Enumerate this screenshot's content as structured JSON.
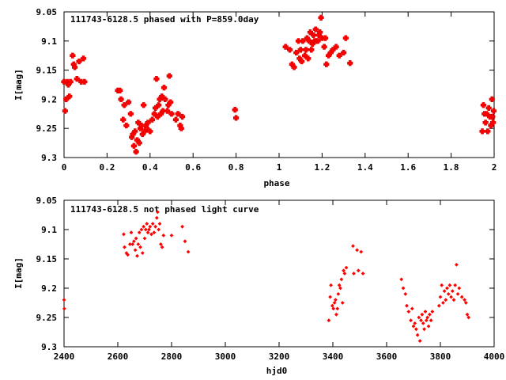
{
  "chart_data": [
    {
      "type": "scatter",
      "title": "111743-6128.5 phased with P=859.0day",
      "xlabel": "phase",
      "ylabel": "I[mag]",
      "xlim": [
        0,
        2
      ],
      "ylim": [
        9.05,
        9.3
      ],
      "y_inverted": true,
      "grid": false,
      "x_ticks": [
        "0",
        "0.2",
        "0.4",
        "0.6",
        "0.8",
        "1",
        "1.2",
        "1.4",
        "1.6",
        "1.8",
        "2"
      ],
      "y_ticks": [
        "9.05",
        "9.1",
        "9.15",
        "9.2",
        "9.25",
        "9.3"
      ],
      "marker_color": "#ff0000",
      "points": [
        [
          0.0,
          9.17
        ],
        [
          0.005,
          9.22
        ],
        [
          0.01,
          9.2
        ],
        [
          0.015,
          9.17
        ],
        [
          0.02,
          9.175
        ],
        [
          0.025,
          9.195
        ],
        [
          0.03,
          9.17
        ],
        [
          0.04,
          9.125
        ],
        [
          0.045,
          9.14
        ],
        [
          0.05,
          9.145
        ],
        [
          0.06,
          9.165
        ],
        [
          0.07,
          9.135
        ],
        [
          0.08,
          9.17
        ],
        [
          0.09,
          9.13
        ],
        [
          0.095,
          9.17
        ],
        [
          0.25,
          9.185
        ],
        [
          0.26,
          9.185
        ],
        [
          0.265,
          9.2
        ],
        [
          0.275,
          9.235
        ],
        [
          0.28,
          9.21
        ],
        [
          0.29,
          9.245
        ],
        [
          0.3,
          9.205
        ],
        [
          0.31,
          9.225
        ],
        [
          0.315,
          9.265
        ],
        [
          0.32,
          9.26
        ],
        [
          0.325,
          9.28
        ],
        [
          0.33,
          9.255
        ],
        [
          0.335,
          9.29
        ],
        [
          0.34,
          9.27
        ],
        [
          0.345,
          9.24
        ],
        [
          0.35,
          9.275
        ],
        [
          0.355,
          9.25
        ],
        [
          0.36,
          9.245
        ],
        [
          0.365,
          9.26
        ],
        [
          0.37,
          9.21
        ],
        [
          0.375,
          9.255
        ],
        [
          0.38,
          9.245
        ],
        [
          0.385,
          9.25
        ],
        [
          0.39,
          9.24
        ],
        [
          0.4,
          9.255
        ],
        [
          0.41,
          9.235
        ],
        [
          0.42,
          9.225
        ],
        [
          0.425,
          9.215
        ],
        [
          0.43,
          9.165
        ],
        [
          0.435,
          9.23
        ],
        [
          0.44,
          9.21
        ],
        [
          0.445,
          9.2
        ],
        [
          0.45,
          9.225
        ],
        [
          0.455,
          9.195
        ],
        [
          0.46,
          9.22
        ],
        [
          0.465,
          9.18
        ],
        [
          0.47,
          9.2
        ],
        [
          0.48,
          9.22
        ],
        [
          0.485,
          9.21
        ],
        [
          0.49,
          9.16
        ],
        [
          0.495,
          9.205
        ],
        [
          0.5,
          9.225
        ],
        [
          0.52,
          9.235
        ],
        [
          0.53,
          9.225
        ],
        [
          0.54,
          9.245
        ],
        [
          0.545,
          9.25
        ],
        [
          0.55,
          9.23
        ],
        [
          0.795,
          9.218
        ],
        [
          0.8,
          9.232
        ],
        [
          1.03,
          9.11
        ],
        [
          1.05,
          9.115
        ],
        [
          1.06,
          9.14
        ],
        [
          1.07,
          9.145
        ],
        [
          1.08,
          9.12
        ],
        [
          1.09,
          9.1
        ],
        [
          1.095,
          9.13
        ],
        [
          1.1,
          9.115
        ],
        [
          1.105,
          9.135
        ],
        [
          1.11,
          9.1
        ],
        [
          1.12,
          9.125
        ],
        [
          1.125,
          9.115
        ],
        [
          1.13,
          9.095
        ],
        [
          1.135,
          9.13
        ],
        [
          1.14,
          9.1
        ],
        [
          1.145,
          9.085
        ],
        [
          1.15,
          9.115
        ],
        [
          1.155,
          9.105
        ],
        [
          1.16,
          9.09
        ],
        [
          1.165,
          9.1
        ],
        [
          1.17,
          9.08
        ],
        [
          1.175,
          9.1
        ],
        [
          1.18,
          9.1
        ],
        [
          1.185,
          9.09
        ],
        [
          1.19,
          9.085
        ],
        [
          1.195,
          9.06
        ],
        [
          1.2,
          9.095
        ],
        [
          1.21,
          9.11
        ],
        [
          1.215,
          9.095
        ],
        [
          1.22,
          9.14
        ],
        [
          1.23,
          9.125
        ],
        [
          1.24,
          9.12
        ],
        [
          1.25,
          9.115
        ],
        [
          1.265,
          9.11
        ],
        [
          1.28,
          9.125
        ],
        [
          1.3,
          9.12
        ],
        [
          1.31,
          9.095
        ],
        [
          1.33,
          9.138
        ],
        [
          1.945,
          9.255
        ],
        [
          1.95,
          9.21
        ],
        [
          1.955,
          9.225
        ],
        [
          1.96,
          9.24
        ],
        [
          1.965,
          9.225
        ],
        [
          1.97,
          9.255
        ],
        [
          1.975,
          9.215
        ],
        [
          1.98,
          9.23
        ],
        [
          1.985,
          9.245
        ],
        [
          1.99,
          9.2
        ],
        [
          1.992,
          9.23
        ],
        [
          1.995,
          9.24
        ],
        [
          1.998,
          9.22
        ]
      ]
    },
    {
      "type": "scatter",
      "title": "111743-6128.5 not phased light curve",
      "xlabel": "hjd0",
      "ylabel": "I[mag]",
      "xlim": [
        2400,
        4000
      ],
      "ylim": [
        9.05,
        9.3
      ],
      "y_inverted": true,
      "grid": false,
      "x_ticks": [
        "2400",
        "2600",
        "2800",
        "3000",
        "3200",
        "3400",
        "3600",
        "3800",
        "4000"
      ],
      "y_ticks": [
        "9.05",
        "9.1",
        "9.15",
        "9.2",
        "9.25",
        "9.3"
      ],
      "marker_color": "#ff0000",
      "points": [
        [
          2400,
          9.22
        ],
        [
          2401,
          9.235
        ],
        [
          2622,
          9.108
        ],
        [
          2625,
          9.13
        ],
        [
          2632,
          9.14
        ],
        [
          2637,
          9.143
        ],
        [
          2645,
          9.125
        ],
        [
          2650,
          9.105
        ],
        [
          2655,
          9.125
        ],
        [
          2660,
          9.12
        ],
        [
          2665,
          9.135
        ],
        [
          2668,
          9.115
        ],
        [
          2672,
          9.145
        ],
        [
          2676,
          9.125
        ],
        [
          2680,
          9.105
        ],
        [
          2684,
          9.13
        ],
        [
          2688,
          9.1
        ],
        [
          2692,
          9.14
        ],
        [
          2696,
          9.095
        ],
        [
          2700,
          9.115
        ],
        [
          2704,
          9.1
        ],
        [
          2708,
          9.09
        ],
        [
          2712,
          9.105
        ],
        [
          2716,
          9.1
        ],
        [
          2720,
          9.095
        ],
        [
          2725,
          9.108
        ],
        [
          2730,
          9.09
        ],
        [
          2735,
          9.105
        ],
        [
          2740,
          9.095
        ],
        [
          2745,
          9.08
        ],
        [
          2748,
          9.07
        ],
        [
          2752,
          9.1
        ],
        [
          2756,
          9.09
        ],
        [
          2760,
          9.125
        ],
        [
          2765,
          9.13
        ],
        [
          2770,
          9.11
        ],
        [
          2800,
          9.11
        ],
        [
          2840,
          9.095
        ],
        [
          2850,
          9.12
        ],
        [
          2862,
          9.138
        ],
        [
          3385,
          9.255
        ],
        [
          3390,
          9.215
        ],
        [
          3393,
          9.195
        ],
        [
          3398,
          9.23
        ],
        [
          3402,
          9.235
        ],
        [
          3406,
          9.225
        ],
        [
          3410,
          9.22
        ],
        [
          3413,
          9.245
        ],
        [
          3417,
          9.235
        ],
        [
          3420,
          9.21
        ],
        [
          3424,
          9.195
        ],
        [
          3428,
          9.2
        ],
        [
          3432,
          9.185
        ],
        [
          3436,
          9.225
        ],
        [
          3440,
          9.17
        ],
        [
          3444,
          9.175
        ],
        [
          3450,
          9.165
        ],
        [
          3475,
          9.128
        ],
        [
          3490,
          9.135
        ],
        [
          3478,
          9.175
        ],
        [
          3495,
          9.17
        ],
        [
          3505,
          9.138
        ],
        [
          3512,
          9.175
        ],
        [
          3655,
          9.185
        ],
        [
          3662,
          9.2
        ],
        [
          3670,
          9.21
        ],
        [
          3675,
          9.23
        ],
        [
          3682,
          9.24
        ],
        [
          3690,
          9.255
        ],
        [
          3695,
          9.235
        ],
        [
          3700,
          9.265
        ],
        [
          3705,
          9.26
        ],
        [
          3710,
          9.27
        ],
        [
          3715,
          9.28
        ],
        [
          3720,
          9.25
        ],
        [
          3724,
          9.29
        ],
        [
          3728,
          9.255
        ],
        [
          3732,
          9.245
        ],
        [
          3736,
          9.26
        ],
        [
          3740,
          9.27
        ],
        [
          3744,
          9.24
        ],
        [
          3748,
          9.255
        ],
        [
          3752,
          9.25
        ],
        [
          3756,
          9.265
        ],
        [
          3760,
          9.245
        ],
        [
          3765,
          9.255
        ],
        [
          3770,
          9.24
        ],
        [
          3795,
          9.23
        ],
        [
          3800,
          9.215
        ],
        [
          3805,
          9.195
        ],
        [
          3810,
          9.225
        ],
        [
          3815,
          9.205
        ],
        [
          3820,
          9.22
        ],
        [
          3825,
          9.2
        ],
        [
          3830,
          9.21
        ],
        [
          3835,
          9.195
        ],
        [
          3840,
          9.215
        ],
        [
          3845,
          9.205
        ],
        [
          3850,
          9.22
        ],
        [
          3855,
          9.195
        ],
        [
          3860,
          9.16
        ],
        [
          3865,
          9.21
        ],
        [
          3870,
          9.2
        ],
        [
          3880,
          9.215
        ],
        [
          3890,
          9.22
        ],
        [
          3895,
          9.225
        ],
        [
          3900,
          9.245
        ],
        [
          3905,
          9.25
        ]
      ]
    }
  ]
}
